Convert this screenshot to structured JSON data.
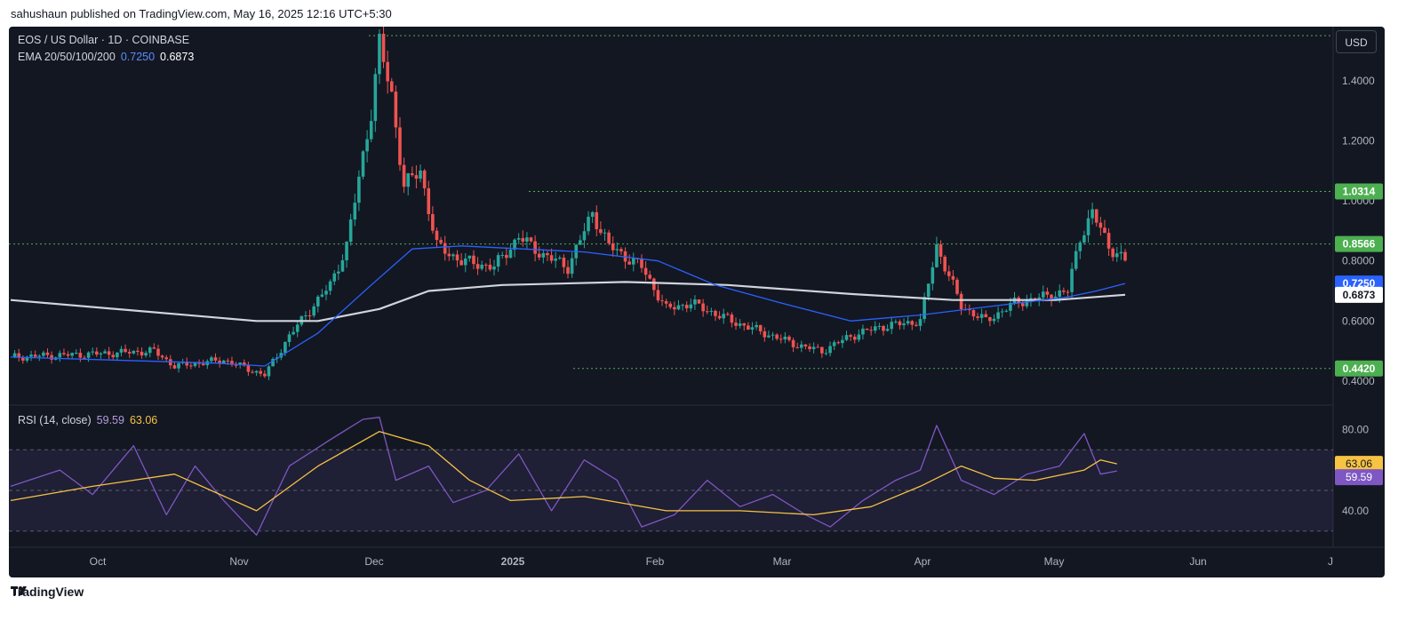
{
  "header": {
    "caption": "sahushaun published on TradingView.com, May 16, 2025 12:16 UTC+5:30"
  },
  "legend": {
    "symbol": "EOS / US Dollar · 1D · COINBASE",
    "ema_label": "EMA 20/50/100/200",
    "ema_value_1": "0.7250",
    "ema_value_2": "0.6873",
    "rsi_label": "RSI (14, close)",
    "rsi_value": "59.59",
    "rsi_ma_value": "63.06"
  },
  "currency_button": "USD",
  "footer": {
    "brand": "TradingView"
  },
  "colors": {
    "background": "#131722",
    "up": "#26a69a",
    "down": "#ef5350",
    "ema_fast": "#2962ff",
    "ema_slow": "#d1d4dc",
    "rsi": "#7e57c2",
    "rsi_ma": "#f6c343",
    "level_green": "#4caf50"
  },
  "chart_data": {
    "type": "candlestick",
    "price_axis": {
      "ticks": [
        "1.4000",
        "1.2000",
        "1.0000",
        "0.8000",
        "0.6000",
        "0.4000"
      ],
      "range": [
        0.32,
        1.58
      ]
    },
    "time_axis": [
      "Oct",
      "Nov",
      "Dec",
      "2025",
      "Feb",
      "Mar",
      "Apr",
      "May",
      "Jun",
      "J"
    ],
    "levels": [
      {
        "label": "1.0314",
        "value": 1.0314,
        "color": "#4caf50"
      },
      {
        "label": "0.8566",
        "value": 0.8566,
        "color": "#4caf50"
      },
      {
        "label": "0.7250",
        "value": 0.725,
        "color": "#2962ff"
      },
      {
        "label": "0.6873",
        "value": 0.6873,
        "color": "#ffffff"
      },
      {
        "label": "0.4420",
        "value": 0.442,
        "color": "#4caf50"
      }
    ],
    "top_line_value": 1.55,
    "price_path": [
      [
        0,
        0.48
      ],
      [
        20,
        0.49
      ],
      [
        35,
        0.5
      ],
      [
        40,
        0.45
      ],
      [
        52,
        0.47
      ],
      [
        58,
        0.44
      ],
      [
        62,
        0.42
      ],
      [
        68,
        0.55
      ],
      [
        72,
        0.62
      ],
      [
        78,
        0.72
      ],
      [
        82,
        0.85
      ],
      [
        88,
        1.3
      ],
      [
        90,
        1.52
      ],
      [
        93,
        1.35
      ],
      [
        96,
        1.05
      ],
      [
        100,
        1.1
      ],
      [
        104,
        0.85
      ],
      [
        110,
        0.8
      ],
      [
        118,
        0.78
      ],
      [
        124,
        0.88
      ],
      [
        130,
        0.82
      ],
      [
        136,
        0.78
      ],
      [
        142,
        0.96
      ],
      [
        146,
        0.85
      ],
      [
        154,
        0.78
      ],
      [
        160,
        0.64
      ],
      [
        166,
        0.66
      ],
      [
        176,
        0.6
      ],
      [
        184,
        0.56
      ],
      [
        192,
        0.52
      ],
      [
        198,
        0.5
      ],
      [
        205,
        0.55
      ],
      [
        212,
        0.58
      ],
      [
        222,
        0.6
      ],
      [
        226,
        0.85
      ],
      [
        232,
        0.65
      ],
      [
        238,
        0.6
      ],
      [
        245,
        0.66
      ],
      [
        252,
        0.68
      ],
      [
        258,
        0.7
      ],
      [
        261,
        0.88
      ],
      [
        264,
        0.96
      ],
      [
        268,
        0.85
      ],
      [
        272,
        0.8
      ]
    ],
    "ema_20_50": [
      [
        0,
        0.48
      ],
      [
        50,
        0.46
      ],
      [
        62,
        0.45
      ],
      [
        75,
        0.56
      ],
      [
        88,
        0.72
      ],
      [
        98,
        0.84
      ],
      [
        110,
        0.85
      ],
      [
        140,
        0.83
      ],
      [
        158,
        0.8
      ],
      [
        172,
        0.72
      ],
      [
        188,
        0.66
      ],
      [
        205,
        0.6
      ],
      [
        222,
        0.62
      ],
      [
        240,
        0.65
      ],
      [
        258,
        0.68
      ],
      [
        265,
        0.7
      ],
      [
        272,
        0.725
      ]
    ],
    "ema_100_200": [
      [
        0,
        0.67
      ],
      [
        60,
        0.6
      ],
      [
        75,
        0.6
      ],
      [
        90,
        0.64
      ],
      [
        102,
        0.7
      ],
      [
        120,
        0.72
      ],
      [
        150,
        0.73
      ],
      [
        175,
        0.72
      ],
      [
        205,
        0.69
      ],
      [
        230,
        0.67
      ],
      [
        255,
        0.67
      ],
      [
        272,
        0.6873
      ]
    ],
    "rsi": {
      "axis_ticks": [
        "80.00",
        "40.00"
      ],
      "bands": [
        70,
        50,
        30
      ],
      "range": [
        22,
        92
      ],
      "rsi_values": [
        [
          0,
          52
        ],
        [
          12,
          60
        ],
        [
          20,
          48
        ],
        [
          30,
          72
        ],
        [
          38,
          38
        ],
        [
          45,
          62
        ],
        [
          52,
          45
        ],
        [
          60,
          28
        ],
        [
          68,
          62
        ],
        [
          78,
          75
        ],
        [
          86,
          85
        ],
        [
          90,
          86
        ],
        [
          94,
          55
        ],
        [
          102,
          62
        ],
        [
          108,
          44
        ],
        [
          116,
          50
        ],
        [
          124,
          68
        ],
        [
          132,
          40
        ],
        [
          140,
          65
        ],
        [
          148,
          55
        ],
        [
          154,
          32
        ],
        [
          162,
          38
        ],
        [
          170,
          55
        ],
        [
          178,
          42
        ],
        [
          186,
          48
        ],
        [
          194,
          38
        ],
        [
          200,
          32
        ],
        [
          208,
          45
        ],
        [
          216,
          55
        ],
        [
          222,
          60
        ],
        [
          226,
          82
        ],
        [
          232,
          55
        ],
        [
          240,
          48
        ],
        [
          248,
          58
        ],
        [
          256,
          62
        ],
        [
          262,
          78
        ],
        [
          266,
          58
        ],
        [
          270,
          59.59
        ]
      ],
      "rsi_ma_values": [
        [
          0,
          45
        ],
        [
          20,
          52
        ],
        [
          40,
          58
        ],
        [
          60,
          40
        ],
        [
          75,
          62
        ],
        [
          90,
          79
        ],
        [
          102,
          72
        ],
        [
          112,
          55
        ],
        [
          122,
          45
        ],
        [
          140,
          47
        ],
        [
          160,
          40
        ],
        [
          178,
          40
        ],
        [
          196,
          38
        ],
        [
          210,
          42
        ],
        [
          222,
          52
        ],
        [
          232,
          62
        ],
        [
          240,
          56
        ],
        [
          250,
          55
        ],
        [
          262,
          60
        ],
        [
          266,
          65
        ],
        [
          270,
          63.06
        ]
      ]
    }
  }
}
